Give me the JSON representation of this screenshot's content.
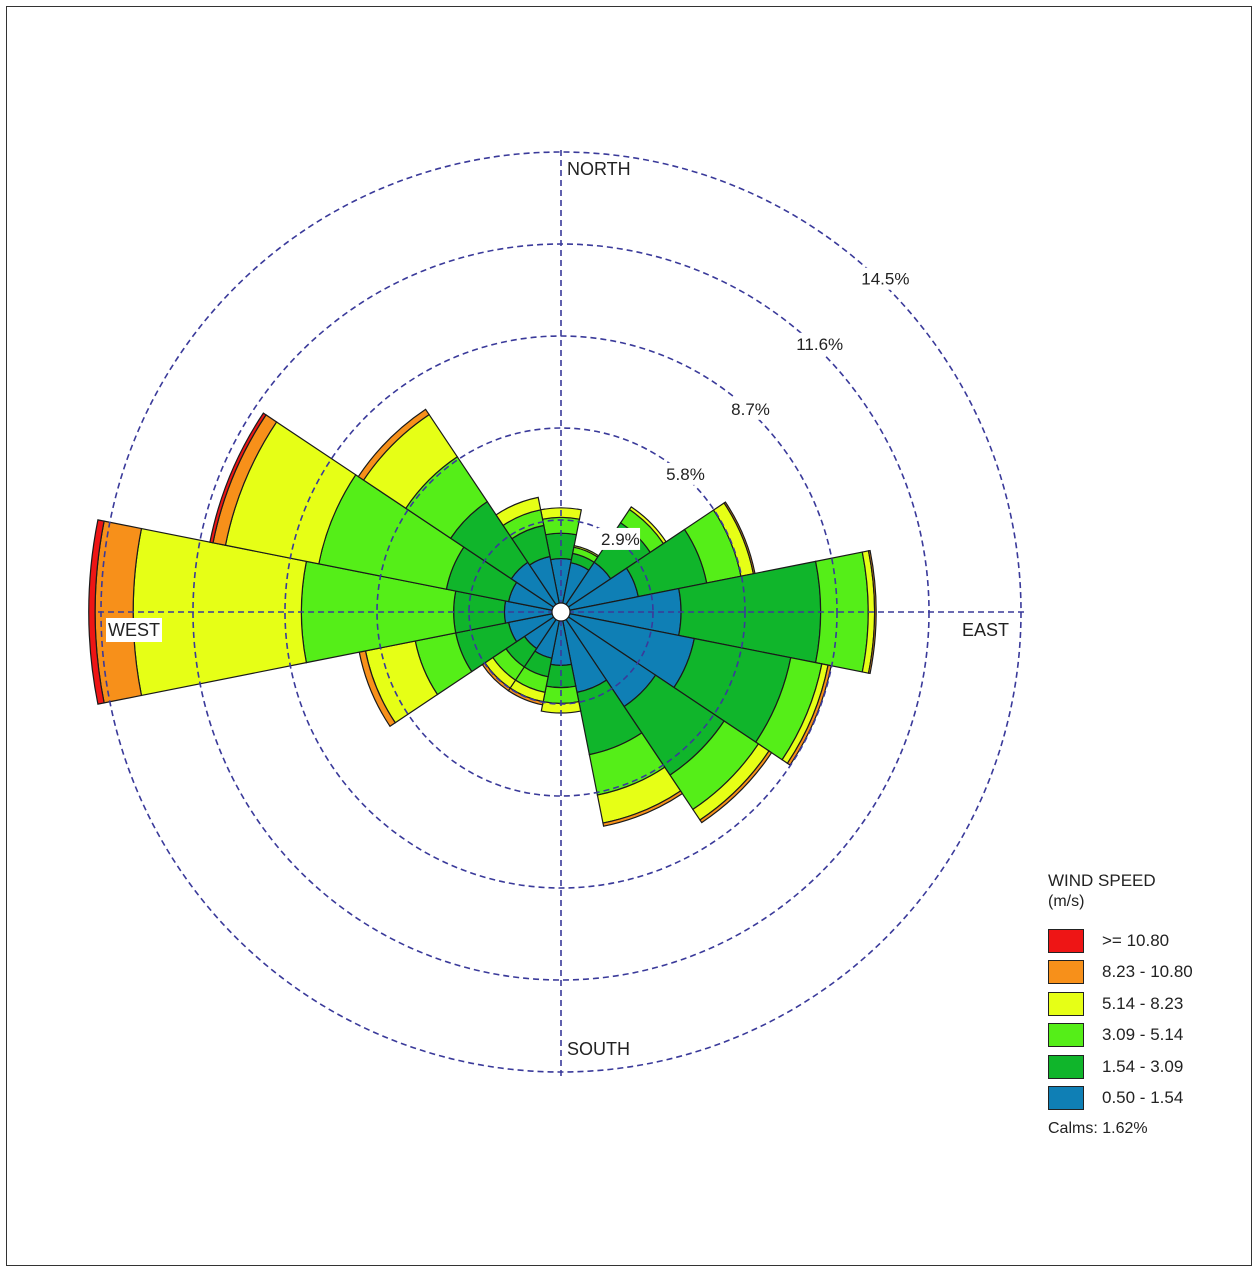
{
  "chart_data": {
    "type": "windrose",
    "direction_labels": {
      "north": "NORTH",
      "south": "SOUTH",
      "east": "EAST",
      "west": "WEST"
    },
    "ring_labels": [
      "2.9%",
      "5.8%",
      "8.7%",
      "11.6%",
      "14.5%"
    ],
    "ring_values": [
      2.9,
      5.8,
      8.7,
      11.6,
      14.5
    ],
    "speed_bins": [
      {
        "label": "0.50 - 1.54",
        "color": "#0f7fb5"
      },
      {
        "label": "1.54 - 3.09",
        "color": "#10b52b"
      },
      {
        "label": "3.09 - 5.14",
        "color": "#55ee18"
      },
      {
        "label": "5.14 - 8.23",
        "color": "#e6ff16"
      },
      {
        "label": "8.23 - 10.80",
        "color": "#f7901a"
      },
      {
        "label": ">= 10.80",
        "color": "#ee1515"
      }
    ],
    "sectors": [
      {
        "direction": 0,
        "values": [
          1.4,
          0.8,
          0.5,
          0.3,
          0.0,
          0.0
        ]
      },
      {
        "direction": 22.5,
        "values": [
          1.3,
          0.3,
          0.2,
          0.05,
          0.0,
          0.0
        ]
      },
      {
        "direction": 45,
        "values": [
          1.6,
          1.5,
          0.5,
          0.1,
          0.0,
          0.0
        ]
      },
      {
        "direction": 67.5,
        "values": [
          2.2,
          2.2,
          1.1,
          0.4,
          0.05,
          0.0
        ]
      },
      {
        "direction": 90,
        "values": [
          3.5,
          4.4,
          1.5,
          0.2,
          0.05,
          0.0
        ]
      },
      {
        "direction": 112.5,
        "values": [
          4.0,
          3.1,
          1.0,
          0.2,
          0.1,
          0.0
        ]
      },
      {
        "direction": 135,
        "values": [
          3.3,
          2.6,
          1.3,
          0.4,
          0.1,
          0.0
        ]
      },
      {
        "direction": 157.5,
        "values": [
          2.3,
          2.0,
          1.3,
          0.9,
          0.1,
          0.0
        ]
      },
      {
        "direction": 180,
        "values": [
          1.4,
          0.7,
          0.5,
          0.3,
          0.0,
          0.0
        ]
      },
      {
        "direction": 202.5,
        "values": [
          1.2,
          0.6,
          0.5,
          0.3,
          0.1,
          0.0
        ]
      },
      {
        "direction": 225,
        "values": [
          1.1,
          0.7,
          0.5,
          0.3,
          0.1,
          0.0
        ]
      },
      {
        "direction": 247.5,
        "values": [
          1.4,
          1.7,
          1.3,
          1.6,
          0.2,
          0.0
        ]
      },
      {
        "direction": 270,
        "values": [
          1.5,
          1.6,
          4.8,
          5.3,
          1.2,
          0.2
        ]
      },
      {
        "direction": 292.5,
        "values": [
          1.4,
          2.0,
          4.1,
          3.0,
          0.4,
          0.1
        ]
      },
      {
        "direction": 315,
        "values": [
          1.6,
          2.3,
          1.7,
          1.6,
          0.2,
          0.0
        ]
      },
      {
        "direction": 337.5,
        "values": [
          1.5,
          1.0,
          0.5,
          0.4,
          0.0,
          0.0
        ]
      }
    ]
  },
  "legend": {
    "title": "WIND SPEED",
    "unit": "(m/s)",
    "items": [
      {
        "label": ">= 10.80",
        "color": "#ee1515"
      },
      {
        "label": "8.23 - 10.80",
        "color": "#f7901a"
      },
      {
        "label": "5.14 - 8.23",
        "color": "#e6ff16"
      },
      {
        "label": "3.09 - 5.14",
        "color": "#55ee18"
      },
      {
        "label": "1.54 - 3.09",
        "color": "#10b52b"
      },
      {
        "label": "0.50 - 1.54",
        "color": "#0f7fb5"
      }
    ],
    "calms": "Calms: 1.62%"
  }
}
